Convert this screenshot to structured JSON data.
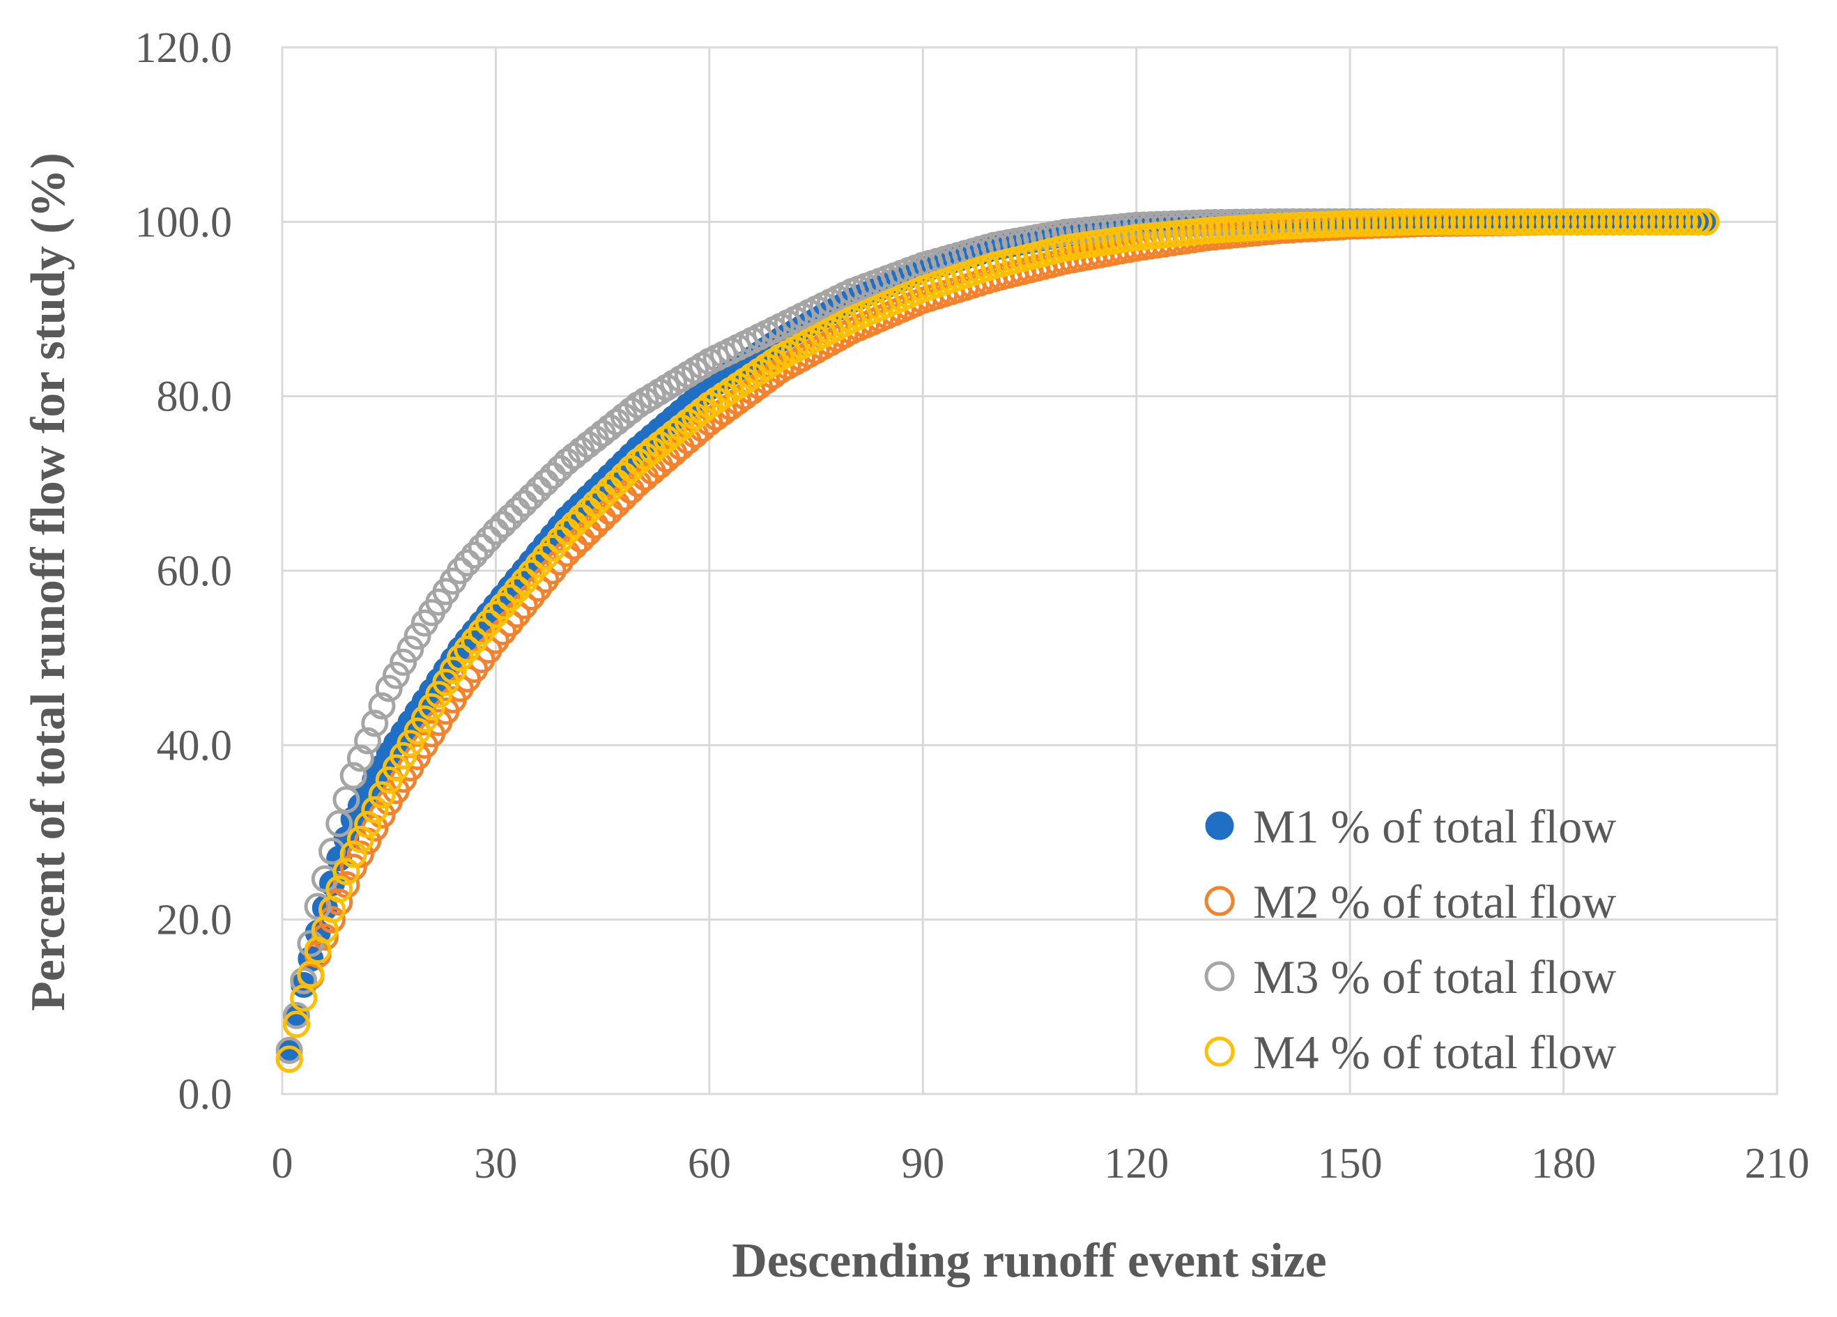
{
  "chart_data": {
    "type": "scatter",
    "title": "",
    "xlabel": "Descending runoff event size",
    "ylabel": "Percent of total runoff flow for study  (%)",
    "xlim": [
      0,
      210
    ],
    "ylim": [
      0,
      120
    ],
    "x_ticks": [
      "0",
      "30",
      "60",
      "90",
      "120",
      "150",
      "180",
      "210"
    ],
    "y_ticks": [
      "0.0",
      "20.0",
      "40.0",
      "60.0",
      "80.0",
      "100.0",
      "120.0"
    ],
    "grid": true,
    "legend_position": "bottom-right",
    "n_points": 200,
    "series": [
      {
        "name": "M1 % of total flow",
        "marker": "filled-circle",
        "color": "#1f6fc5",
        "x": [
          1,
          2,
          3,
          5,
          8,
          10,
          15,
          20,
          25,
          30,
          40,
          50,
          60,
          70,
          80,
          90,
          100,
          110,
          120,
          130,
          140,
          150,
          160,
          180,
          200
        ],
        "y": [
          5.0,
          9.0,
          12.5,
          18.5,
          27.0,
          31.5,
          39.0,
          45.0,
          51.0,
          56.0,
          66.0,
          74.0,
          81.0,
          86.5,
          91.0,
          94.5,
          97.0,
          98.6,
          99.5,
          99.9,
          100.0,
          100.0,
          100.0,
          100.0,
          100.0
        ]
      },
      {
        "name": "M2 % of total flow",
        "marker": "open-circle",
        "color": "#f5812b",
        "x": [
          1,
          2,
          3,
          5,
          8,
          10,
          15,
          20,
          25,
          30,
          40,
          50,
          60,
          70,
          80,
          90,
          100,
          110,
          120,
          130,
          140,
          150,
          160,
          180,
          200
        ],
        "y": [
          4.0,
          8.0,
          11.0,
          16.0,
          22.0,
          26.0,
          33.5,
          40.0,
          46.5,
          52.0,
          62.0,
          70.0,
          77.0,
          83.0,
          87.5,
          91.0,
          93.5,
          95.5,
          97.0,
          98.2,
          99.0,
          99.5,
          99.8,
          100.0,
          100.0
        ]
      },
      {
        "name": "M3 % of total flow",
        "marker": "open-circle",
        "color": "#a5a5a5",
        "x": [
          1,
          2,
          3,
          5,
          8,
          10,
          15,
          20,
          25,
          30,
          40,
          50,
          60,
          70,
          80,
          90,
          100,
          110,
          120,
          130,
          140,
          150,
          160,
          180,
          200
        ],
        "y": [
          5.0,
          9.0,
          13.0,
          21.5,
          31.0,
          36.5,
          46.5,
          54.0,
          60.0,
          64.5,
          72.5,
          79.0,
          84.0,
          88.0,
          92.0,
          95.0,
          97.3,
          98.8,
          99.6,
          99.9,
          100.0,
          100.0,
          100.0,
          100.0,
          100.0
        ]
      },
      {
        "name": "M4 % of total flow",
        "marker": "open-circle",
        "color": "#ffc000",
        "x": [
          1,
          2,
          3,
          5,
          8,
          10,
          15,
          20,
          25,
          30,
          40,
          50,
          60,
          70,
          80,
          90,
          100,
          110,
          120,
          130,
          140,
          150,
          160,
          180,
          200
        ],
        "y": [
          4.0,
          8.0,
          11.0,
          16.5,
          23.5,
          27.5,
          36.0,
          43.0,
          50.0,
          55.0,
          64.5,
          72.5,
          79.0,
          84.5,
          88.8,
          92.3,
          95.0,
          97.0,
          98.2,
          99.0,
          99.5,
          99.8,
          100.0,
          100.0,
          100.0
        ]
      }
    ]
  }
}
